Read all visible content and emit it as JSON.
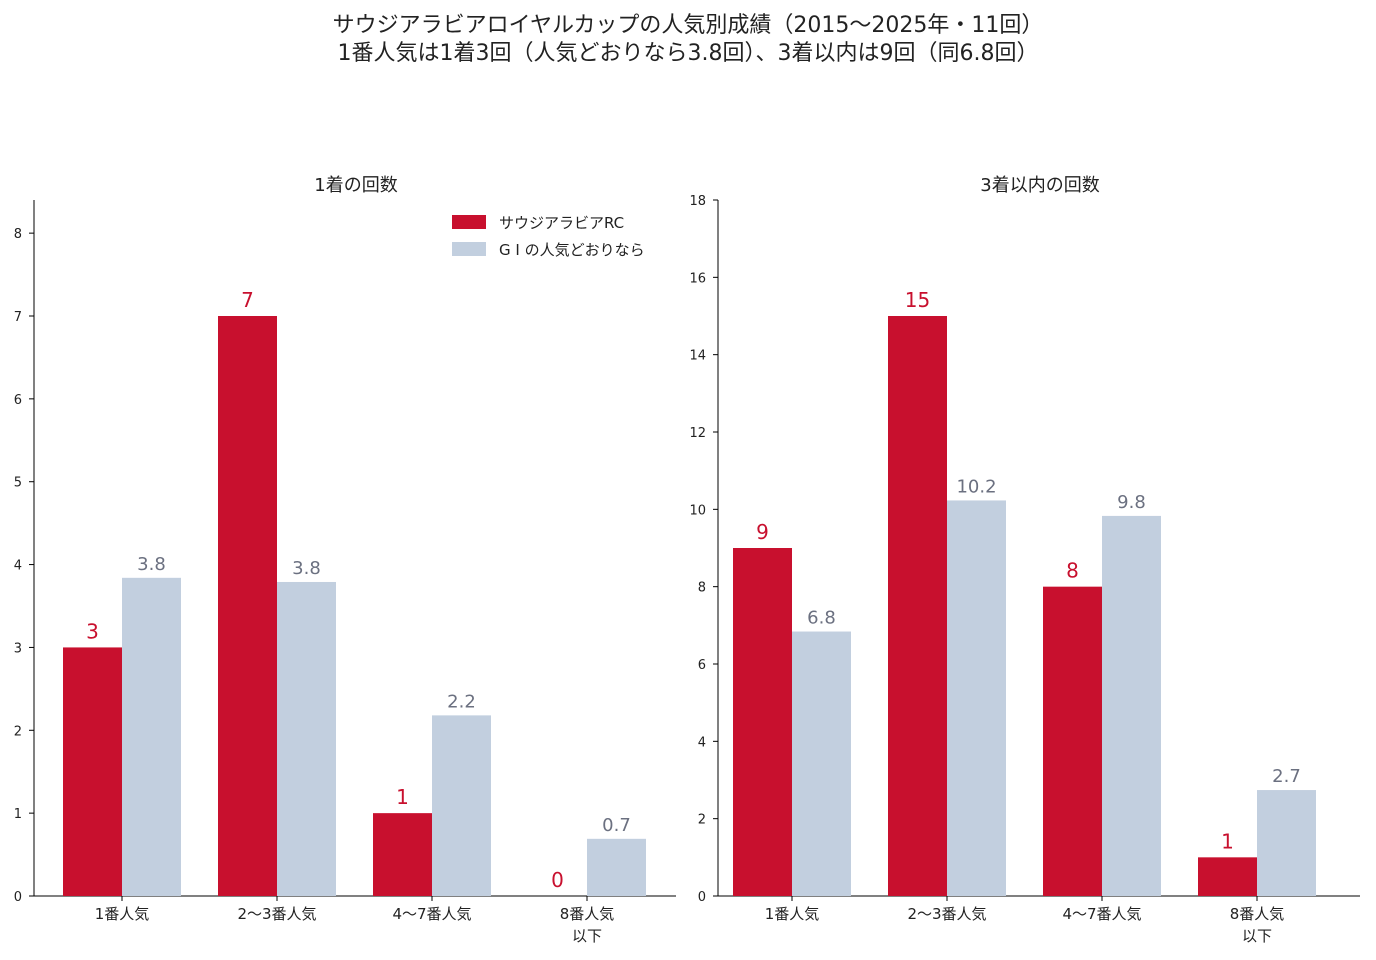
{
  "title_line1": "サウジアラビアロイヤルカップの人気別成績（2015〜2025年・11回）",
  "title_line2": "1番人気は1着3回（人気どおりなら3.8回）、3着以内は9回（同6.8回）",
  "colors": {
    "series_a": "#c8102e",
    "series_b": "#c2cfdf",
    "label_b": "#6b7080"
  },
  "chart_data": [
    {
      "type": "bar",
      "title": "1着の回数",
      "categories": [
        [
          "1番人気"
        ],
        [
          "2〜3番人気"
        ],
        [
          "4〜7番人気"
        ],
        [
          "8番人気",
          "以下"
        ]
      ],
      "series": [
        {
          "name": "サウジアラビアRC",
          "values": [
            3,
            7,
            1,
            0
          ],
          "labels": [
            "3",
            "7",
            "1",
            "0"
          ]
        },
        {
          "name": "G I の人気どおりなら",
          "values": [
            3.84,
            3.79,
            2.18,
            0.69
          ],
          "labels": [
            "3.8",
            "3.8",
            "2.2",
            "0.7"
          ]
        }
      ],
      "ylim": [
        0,
        8.4
      ],
      "yticks": [
        0,
        1,
        2,
        3,
        4,
        5,
        6,
        7,
        8
      ],
      "legend": "top-right"
    },
    {
      "type": "bar",
      "title": "3着以内の回数",
      "categories": [
        [
          "1番人気"
        ],
        [
          "2〜3番人気"
        ],
        [
          "4〜7番人気"
        ],
        [
          "8番人気",
          "以下"
        ]
      ],
      "series": [
        {
          "name": "サウジアラビアRC",
          "values": [
            9,
            15,
            8,
            1
          ],
          "labels": [
            "9",
            "15",
            "8",
            "1"
          ]
        },
        {
          "name": "G I の人気どおりなら",
          "values": [
            6.84,
            10.23,
            9.83,
            2.74
          ],
          "labels": [
            "6.8",
            "10.2",
            "9.8",
            "2.7"
          ]
        }
      ],
      "ylim": [
        0,
        18
      ],
      "yticks": [
        0,
        2,
        4,
        6,
        8,
        10,
        12,
        14,
        16,
        18
      ]
    }
  ]
}
